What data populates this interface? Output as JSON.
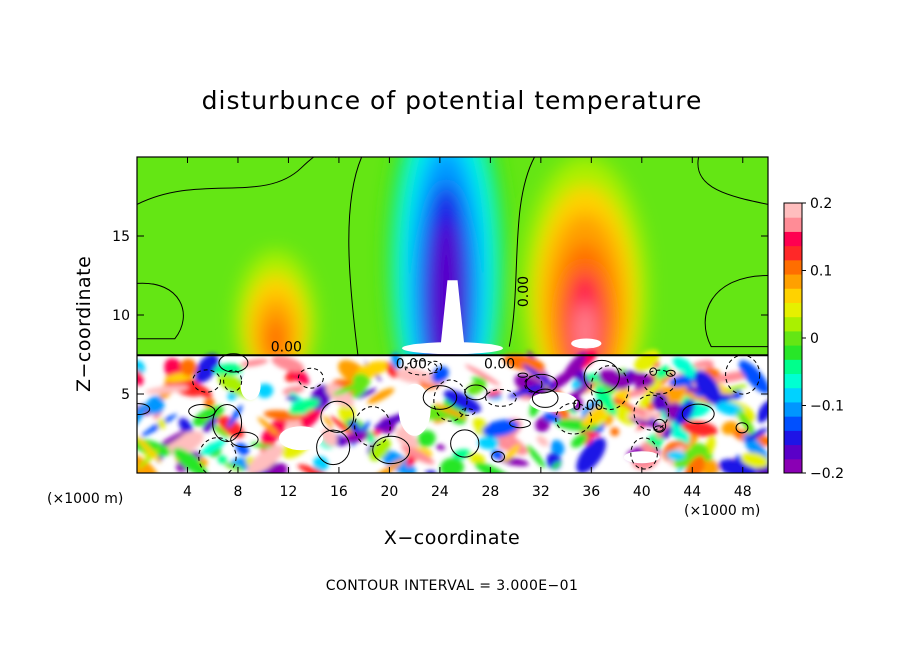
{
  "chart_data": {
    "type": "heatmap",
    "title": "disturbunce of potential temperature",
    "xlabel": "X−coordinate",
    "ylabel": "Z−coordinate",
    "x_unit_left": "(×1000 m)",
    "x_unit_right": "(×1000 m)",
    "footer": "CONTOUR INTERVAL = 3.000E−01",
    "xlim": [
      0,
      50
    ],
    "ylim": [
      0,
      20
    ],
    "xticks": [
      "4",
      "8",
      "12",
      "16",
      "20",
      "24",
      "28",
      "32",
      "36",
      "40",
      "44",
      "48"
    ],
    "yticks": [
      "5",
      "10",
      "15"
    ],
    "colorbar": {
      "range": [
        -0.2,
        0.2
      ],
      "ticks": [
        "0.2",
        "0.1",
        "0",
        "−0.1",
        "−0.2"
      ],
      "colors": [
        "#8a00b4",
        "#5a00c8",
        "#1e14e6",
        "#0050ff",
        "#0096ff",
        "#00d2ff",
        "#00ffd2",
        "#00ff8c",
        "#28e628",
        "#64e614",
        "#aaf000",
        "#e6f000",
        "#ffd200",
        "#ffa000",
        "#ff6e00",
        "#ff2828",
        "#ff0050",
        "#ff8c96",
        "#ffbebe"
      ]
    },
    "contour_labels": [
      "0.00",
      "0.00",
      "0.00",
      "0.00",
      "0.00"
    ],
    "features": [
      {
        "name": "cold-plume",
        "x": 24.5,
        "z_top": 19.0,
        "value": -0.2
      },
      {
        "name": "warm-right",
        "x": 35.5,
        "z_top": 16.0,
        "value": 0.15
      },
      {
        "name": "warm-left",
        "x": 11.0,
        "z_top": 12.0,
        "value": 0.08
      }
    ]
  }
}
